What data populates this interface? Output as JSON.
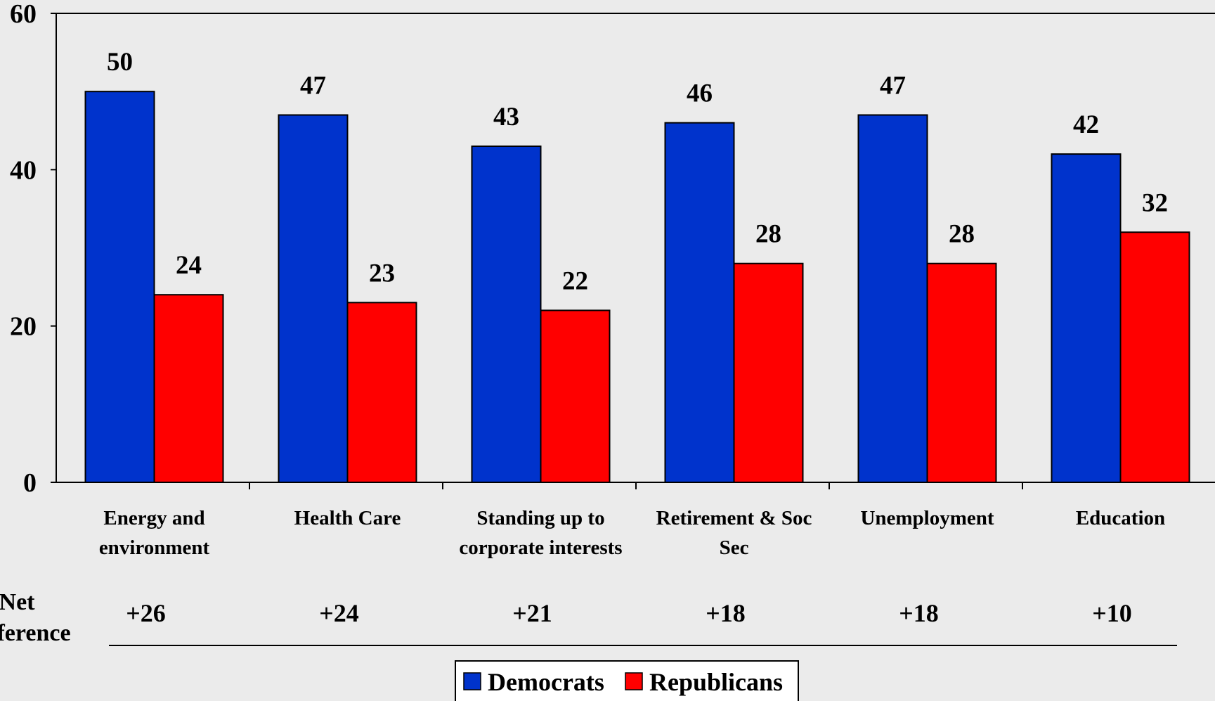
{
  "chart_data": {
    "type": "bar",
    "categories": [
      [
        "Energy and",
        "environment"
      ],
      [
        "Health Care"
      ],
      [
        "Standing up to",
        "corporate interests"
      ],
      [
        "Retirement & Soc",
        "Sec"
      ],
      [
        "Unemployment"
      ],
      [
        "Education"
      ]
    ],
    "series": [
      {
        "name": "Democrats",
        "color": "#0033cc",
        "values": [
          50,
          47,
          43,
          46,
          47,
          42
        ]
      },
      {
        "name": "Republicans",
        "color": "#ff0000",
        "values": [
          24,
          23,
          22,
          28,
          28,
          32
        ]
      }
    ],
    "ylim": [
      0,
      60
    ],
    "yticks": [
      0,
      20,
      40,
      60
    ],
    "net_difference": {
      "label_lines": [
        "Net",
        "ference"
      ],
      "values": [
        "+26",
        "+24",
        "+21",
        "+18",
        "+18",
        "+10"
      ]
    },
    "legend": {
      "position": "bottom-center"
    },
    "grid": false
  }
}
